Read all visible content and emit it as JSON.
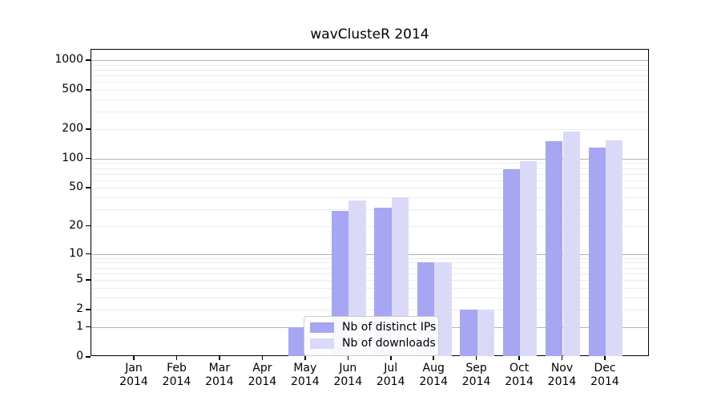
{
  "title": "wavClusteR 2014",
  "chart_data": {
    "type": "bar",
    "title": "wavClusteR 2014",
    "categories": [
      "Jan 2014",
      "Feb 2014",
      "Mar 2014",
      "Apr 2014",
      "May 2014",
      "Jun 2014",
      "Jul 2014",
      "Aug 2014",
      "Sep 2014",
      "Oct 2014",
      "Nov 2014",
      "Dec 2014"
    ],
    "series": [
      {
        "name": "Nb of distinct IPs",
        "color": "#a6a6f2",
        "values": [
          0,
          0,
          0,
          0,
          1,
          29,
          31,
          8,
          2,
          78,
          152,
          130
        ]
      },
      {
        "name": "Nb of downloads",
        "color": "#dadaf8",
        "values": [
          0,
          0,
          0,
          0,
          1,
          37,
          40,
          8,
          2,
          95,
          190,
          155
        ]
      }
    ],
    "xlabel": "",
    "ylabel": "",
    "yscale": "log1p",
    "yticks": [
      0,
      1,
      2,
      5,
      10,
      20,
      50,
      100,
      200,
      500,
      1000
    ],
    "ylim": [
      0,
      1280
    ],
    "grid": "horizontal, minor light + major dark at decades",
    "legend_position": "inside bottom-center",
    "bar_colors": {
      "distinct_ips": "#a6a6f2",
      "downloads": "#dadaf8"
    },
    "gridline_colors": {
      "minor": "#ececec",
      "major": "#b3b3b3"
    }
  }
}
